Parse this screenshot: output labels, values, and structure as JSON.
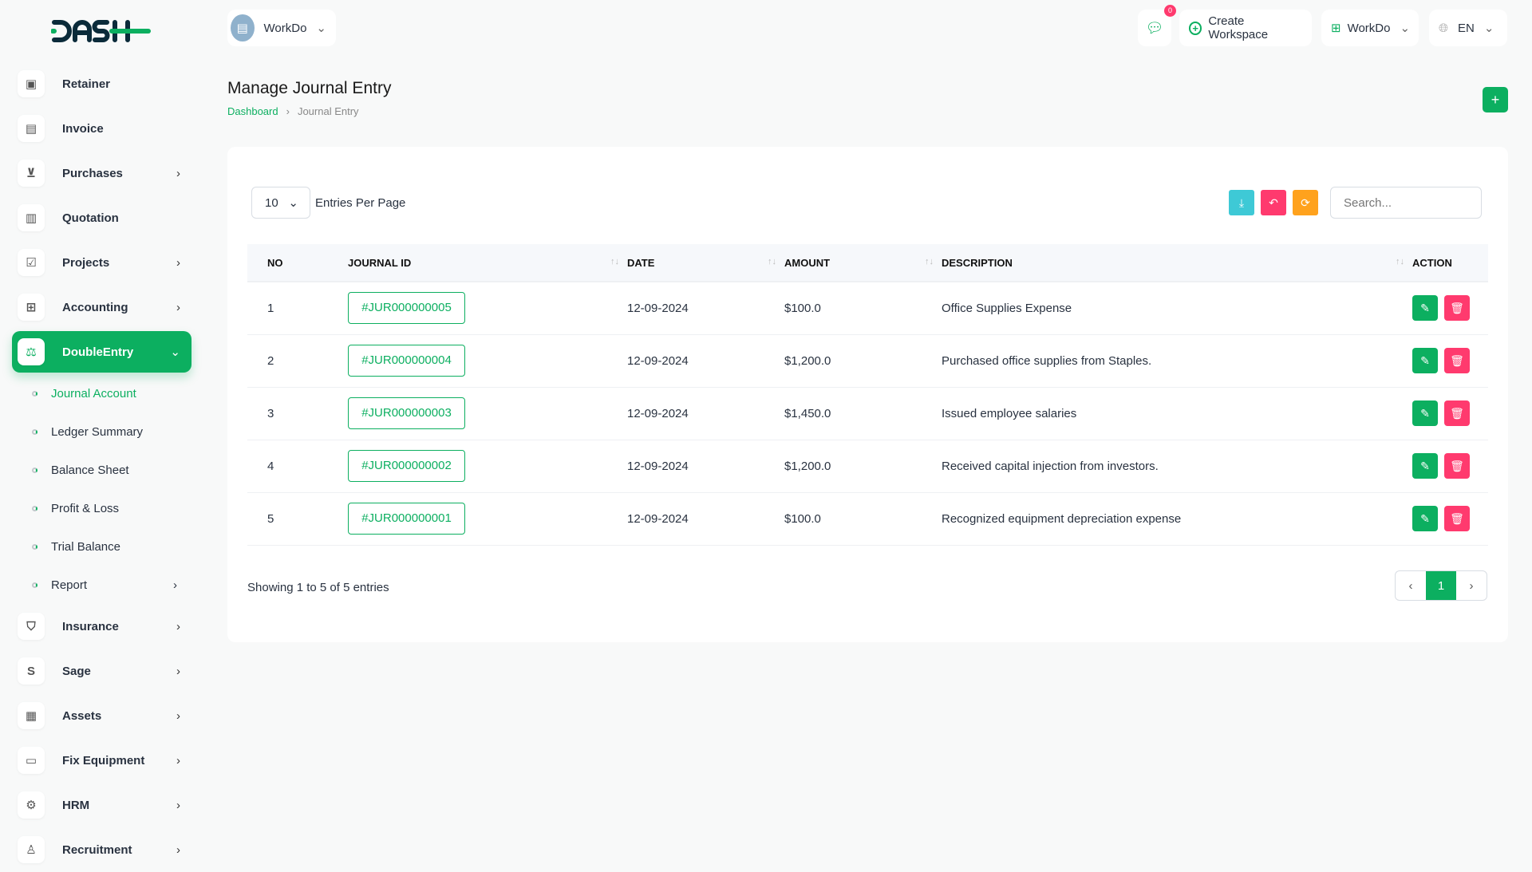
{
  "brand": {
    "logo": "DASH",
    "accent": "#0caf60"
  },
  "header": {
    "workspace": "WorkDo",
    "chat_badge": "0",
    "create_workspace": "Create Workspace",
    "user_workspace": "WorkDo",
    "language": "EN"
  },
  "sidebar": {
    "items": [
      {
        "label": "Retainer",
        "icon": "save-icon"
      },
      {
        "label": "Invoice",
        "icon": "file-icon"
      },
      {
        "label": "Purchases",
        "icon": "cart-icon",
        "chevron": true
      },
      {
        "label": "Quotation",
        "icon": "file-check-icon"
      },
      {
        "label": "Projects",
        "icon": "checkbox-icon",
        "chevron": true
      },
      {
        "label": "Accounting",
        "icon": "grid-icon",
        "chevron": true
      },
      {
        "label": "DoubleEntry",
        "icon": "scale-icon",
        "active": true
      }
    ],
    "sub_items": [
      {
        "label": "Journal Account"
      },
      {
        "label": "Ledger Summary"
      },
      {
        "label": "Balance Sheet"
      },
      {
        "label": "Profit & Loss"
      },
      {
        "label": "Trial Balance"
      },
      {
        "label": "Report"
      }
    ],
    "items_after": [
      {
        "label": "Insurance"
      },
      {
        "label": "Sage"
      },
      {
        "label": "Assets"
      },
      {
        "label": "Fix Equipment"
      },
      {
        "label": "HRM"
      },
      {
        "label": "Recruitment"
      }
    ]
  },
  "page": {
    "title": "Manage Journal Entry",
    "breadcrumb": [
      "Dashboard",
      "Journal Entry"
    ]
  },
  "table": {
    "entries_per_page": "10",
    "entries_label": "Entries Per Page",
    "search_placeholder": "Search...",
    "columns": [
      "NO",
      "JOURNAL ID",
      "DATE",
      "AMOUNT",
      "DESCRIPTION",
      "ACTION"
    ],
    "rows": [
      {
        "no": "1",
        "id": "#JUR000000005",
        "date": "12-09-2024",
        "amount": "$100.0",
        "description": "Office Supplies Expense"
      },
      {
        "no": "2",
        "id": "#JUR000000004",
        "date": "12-09-2024",
        "amount": "$1,200.0",
        "description": "Purchased office supplies from Staples."
      },
      {
        "no": "3",
        "id": "#JUR000000003",
        "date": "12-09-2024",
        "amount": "$1,450.0",
        "description": "Issued employee salaries"
      },
      {
        "no": "4",
        "id": "#JUR000000002",
        "date": "12-09-2024",
        "amount": "$1,200.0",
        "description": "Received capital injection from investors."
      },
      {
        "no": "5",
        "id": "#JUR000000001",
        "date": "12-09-2024",
        "amount": "$100.0",
        "description": "Recognized equipment depreciation expense"
      }
    ],
    "footer": "Showing 1 to 5 of 5 entries",
    "current_page": "1"
  }
}
